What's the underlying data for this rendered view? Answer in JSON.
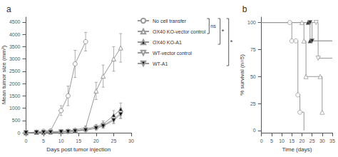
{
  "chart_data": [
    {
      "type": "line",
      "title": "a",
      "xlabel": "Days post tumor injection",
      "ylabel": "Mean tumor size (mm³)",
      "xlim": [
        0,
        30
      ],
      "ylim": [
        0,
        4700
      ],
      "xticks": [
        0,
        5,
        10,
        15,
        20,
        25,
        30
      ],
      "yticks": [
        0,
        500,
        1000,
        1500,
        2000,
        2500,
        3000,
        3500,
        4000,
        4500
      ],
      "grid": false,
      "legend": "right",
      "annotations": [
        "ns",
        "*",
        "*"
      ],
      "series": [
        {
          "name": "No cell transfer",
          "color": "#999999",
          "marker": "circle_open",
          "x": [
            0,
            3,
            5,
            7,
            10,
            12,
            14,
            17
          ],
          "values": [
            0,
            30,
            60,
            80,
            900,
            1500,
            2800,
            3700
          ],
          "err": [
            0,
            15,
            25,
            35,
            200,
            400,
            550,
            380
          ]
        },
        {
          "name": "OX40 KO-vector control",
          "color": "#999999",
          "marker": "triangle_up_open",
          "x": [
            0,
            3,
            5,
            7,
            10,
            12,
            14,
            17,
            20,
            22,
            25,
            27
          ],
          "values": [
            0,
            20,
            30,
            40,
            60,
            80,
            120,
            200,
            1700,
            2300,
            3000,
            3450
          ],
          "err": [
            0,
            10,
            15,
            20,
            25,
            35,
            50,
            80,
            350,
            450,
            500,
            580
          ]
        },
        {
          "name": "OX40 KO-A1",
          "color": "#999999",
          "marker": "triangle_up_filled",
          "x": [
            0,
            3,
            5,
            7,
            10,
            12,
            14,
            17,
            20,
            22,
            25,
            27
          ],
          "values": [
            0,
            15,
            20,
            30,
            40,
            60,
            80,
            150,
            250,
            350,
            700,
            950
          ],
          "err": [
            0,
            8,
            10,
            15,
            20,
            28,
            35,
            60,
            90,
            130,
            200,
            260
          ]
        },
        {
          "name": "WT-vector control",
          "color": "#999999",
          "marker": "triangle_down_open",
          "x": [
            0,
            3,
            5,
            7,
            10,
            12,
            14,
            17,
            20,
            22,
            25,
            27
          ],
          "values": [
            0,
            12,
            18,
            25,
            35,
            50,
            70,
            120,
            200,
            300,
            550,
            800
          ],
          "err": [
            0,
            6,
            9,
            12,
            16,
            22,
            30,
            50,
            75,
            100,
            150,
            200
          ]
        },
        {
          "name": "WT-A1",
          "color": "#999999",
          "marker": "triangle_down_filled",
          "x": [
            0,
            3,
            5,
            7,
            10,
            12,
            14,
            17,
            20,
            22,
            25,
            27
          ],
          "values": [
            0,
            10,
            15,
            20,
            30,
            40,
            60,
            100,
            180,
            270,
            500,
            750
          ],
          "err": [
            0,
            5,
            8,
            10,
            14,
            18,
            26,
            42,
            65,
            90,
            130,
            175
          ]
        }
      ]
    },
    {
      "type": "step",
      "title": "b",
      "xlabel": "Time (days)",
      "ylabel": "% survival (n=5)",
      "xlim": [
        0,
        35
      ],
      "ylim": [
        -2,
        105
      ],
      "xticks": [
        0,
        5,
        10,
        15,
        20,
        25,
        30,
        35
      ],
      "yticks": [
        0,
        25,
        50,
        75,
        100
      ],
      "grid": false,
      "series": [
        {
          "name": "No cell transfer",
          "color": "#999999",
          "marker": "circle_open",
          "x": [
            0,
            14,
            15,
            17,
            18,
            19,
            21
          ],
          "values": [
            100,
            100,
            83,
            83,
            33,
            17,
            0
          ],
          "marker_x": [
            14,
            15,
            17,
            18,
            19
          ],
          "marker_y": [
            100,
            83,
            83,
            33,
            17
          ]
        },
        {
          "name": "OX40 KO-vector control",
          "color": "#999999",
          "marker": "triangle_up_open",
          "x": [
            0,
            20,
            21,
            22,
            29,
            30
          ],
          "values": [
            100,
            100,
            83,
            50,
            50,
            17
          ],
          "marker_x": [
            20,
            21,
            22,
            29,
            30
          ],
          "marker_y": [
            100,
            83,
            50,
            50,
            17
          ]
        },
        {
          "name": "OX40 KO-A1",
          "color": "#999999",
          "marker": "triangle_up_filled",
          "x": [
            0,
            23,
            24,
            35
          ],
          "values": [
            100,
            100,
            83,
            83
          ],
          "marker_x": [
            23,
            24
          ],
          "marker_y": [
            100,
            83
          ]
        },
        {
          "name": "WT-vector control",
          "color": "#999999",
          "marker": "triangle_down_open",
          "x": [
            0,
            27,
            28,
            35
          ],
          "values": [
            100,
            100,
            67,
            67
          ],
          "marker_x": [
            27,
            28
          ],
          "marker_y": [
            100,
            67
          ]
        },
        {
          "name": "WT-A1",
          "color": "#999999",
          "marker": "triangle_down_filled",
          "x": [
            0,
            24,
            25,
            35
          ],
          "values": [
            100,
            100,
            83,
            83
          ],
          "marker_x": [
            24,
            25
          ],
          "marker_y": [
            100,
            83
          ]
        }
      ]
    }
  ]
}
